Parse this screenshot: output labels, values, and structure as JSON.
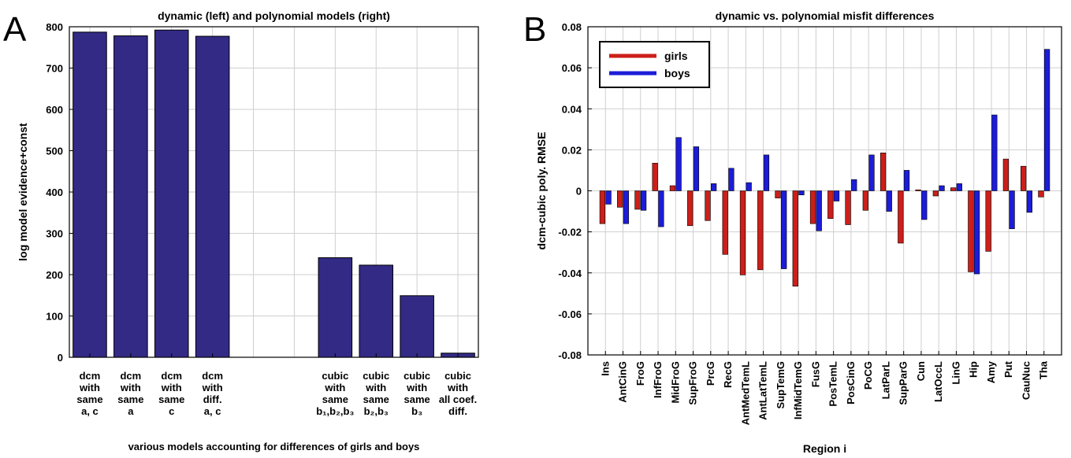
{
  "panel_labels": [
    "A",
    "B"
  ],
  "chart_data": [
    {
      "type": "bar",
      "title": "dynamic (left) and polynomial models (right)",
      "ylabel": "log model evidence+const",
      "xlabel": "various models accounting for differences of girls and boys",
      "ylim": [
        0,
        800
      ],
      "yticks": [
        "0",
        "100",
        "200",
        "300",
        "400",
        "500",
        "600",
        "700",
        "800"
      ],
      "grid": true,
      "colors": {
        "bar": "#332a85"
      },
      "categories": [
        [
          "dcm",
          "with",
          "same",
          "a, c"
        ],
        [
          "dcm",
          "with",
          "same",
          "a"
        ],
        [
          "dcm",
          "with",
          "same",
          "c"
        ],
        [
          "dcm",
          "with",
          "diff.",
          "a, c"
        ],
        [],
        [],
        [
          "cubic",
          "with",
          "same",
          "b₁,b₂,b₃"
        ],
        [
          "cubic",
          "with",
          "same",
          "b₂,b₃"
        ],
        [
          "cubic",
          "with",
          "same",
          "b₃"
        ],
        [
          "cubic",
          "with",
          "all coef.",
          "diff."
        ]
      ],
      "values": [
        787,
        778,
        792,
        777,
        null,
        null,
        241,
        223,
        149,
        10
      ]
    },
    {
      "type": "bar",
      "title": "dynamic vs. polynomial misfit differences",
      "ylabel": "dcm-cubic poly. RMSE",
      "xlabel": "Region i",
      "ylim": [
        -0.08,
        0.08
      ],
      "yticks": [
        "-0.08",
        "-0.06",
        "-0.04",
        "-0.02",
        "0",
        "0.02",
        "0.04",
        "0.06",
        "0.08"
      ],
      "grid": true,
      "legend_position": "top-left",
      "categories": [
        "Ins",
        "AntCinG",
        "FroG",
        "InfFroG",
        "MidFroG",
        "SupFroG",
        "PrcG",
        "RecG",
        "AntMedTemL",
        "AntLatTemL",
        "SupTemG",
        "InfMidTemG",
        "FusG",
        "PosTemL",
        "PosCinG",
        "PoCG",
        "LatParL",
        "SupParG",
        "Cun",
        "LatOccL",
        "LinG",
        "Hip",
        "Amy",
        "Put",
        "CauNuc",
        "Tha"
      ],
      "series": [
        {
          "name": "girls",
          "color": "#cc1f1a",
          "values": [
            -0.016,
            -0.008,
            -0.009,
            0.0135,
            0.0025,
            -0.017,
            -0.0145,
            -0.031,
            -0.041,
            -0.0385,
            -0.0035,
            -0.0465,
            -0.016,
            -0.0135,
            -0.0165,
            -0.0095,
            0.0185,
            -0.0255,
            0.0005,
            -0.0025,
            0.0015,
            -0.0395,
            -0.0295,
            0.0155,
            0.012,
            -0.003
          ]
        },
        {
          "name": "boys",
          "color": "#1c1cd9",
          "values": [
            -0.0065,
            -0.016,
            -0.0095,
            -0.0175,
            0.026,
            0.0215,
            0.0035,
            0.011,
            0.004,
            0.0175,
            -0.038,
            -0.002,
            -0.0195,
            -0.005,
            0.0055,
            0.0175,
            -0.01,
            0.01,
            -0.014,
            0.0025,
            0.0035,
            -0.0405,
            0.037,
            -0.0185,
            -0.0105,
            0.069
          ]
        }
      ]
    }
  ]
}
